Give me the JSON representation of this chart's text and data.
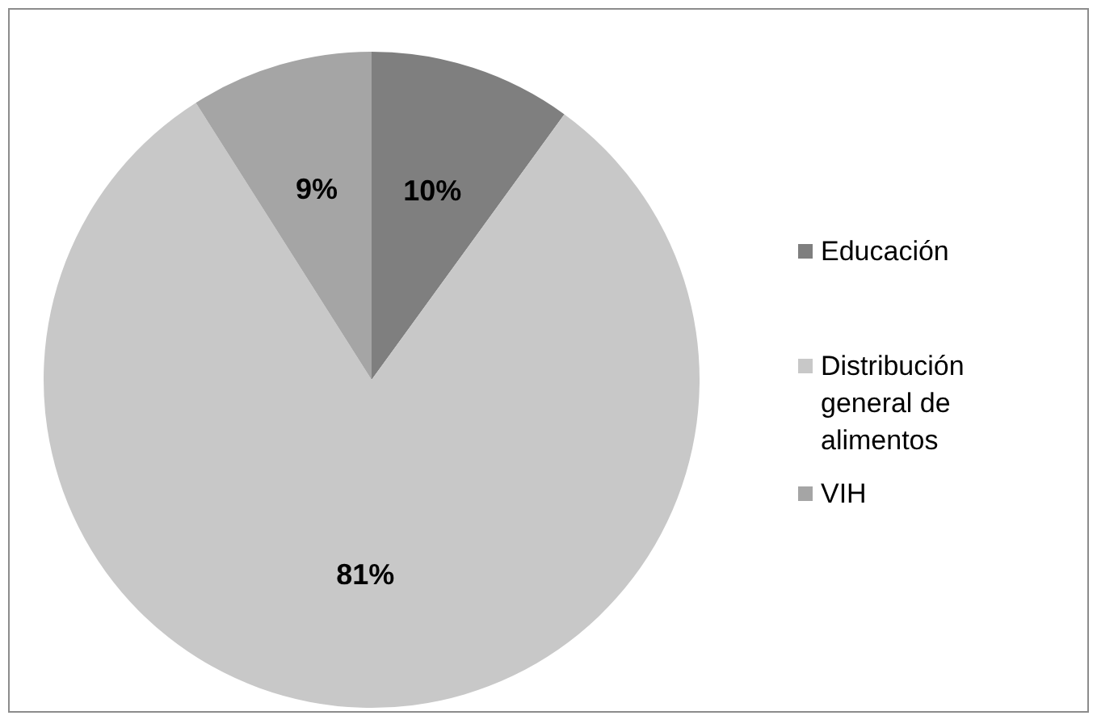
{
  "chart_data": {
    "type": "pie",
    "categories": [
      "Educación",
      "Distribución general de alimentos",
      "VIH"
    ],
    "values": [
      10,
      81,
      9
    ],
    "colors": [
      "#7f7f7f",
      "#c8c8c8",
      "#a5a5a5"
    ],
    "value_labels": [
      "10%",
      "81%",
      "9%"
    ],
    "legend": "right"
  }
}
